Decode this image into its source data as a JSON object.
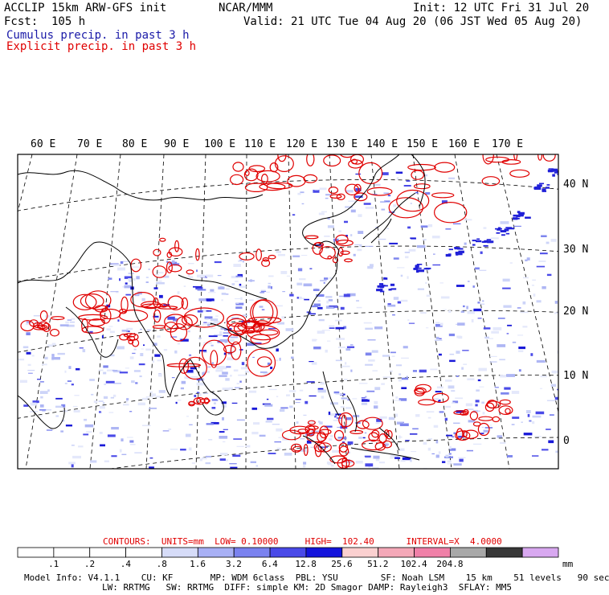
{
  "header": {
    "title_left": "ACCLIP 15km ARW-GFS init",
    "org": "NCAR/MMM",
    "init": "Init: 12 UTC Fri 31 Jul 20",
    "fcst": "Fcst:  105 h",
    "valid": "Valid: 21 UTC Tue 04 Aug 20 (06 JST Wed 05 Aug 20)",
    "cumulus_label": "Cumulus precip. in past 3 h",
    "explicit_label": "Explicit precip. in past 3 h"
  },
  "colors": {
    "cumulus": "#2a2ae0",
    "explicit": "#e00000",
    "coast": "#000000"
  },
  "map": {
    "lon_labels": [
      "60 E",
      "70 E",
      "80 E",
      "90 E",
      "100 E",
      "110 E",
      "120 E",
      "130 E",
      "140 E",
      "150 E",
      "160 E",
      "170 E"
    ],
    "lat_labels": [
      "40 N",
      "30 N",
      "20 N",
      "10 N",
      "0"
    ]
  },
  "contours": {
    "head": "CONTOURS:  UNITS=mm  LOW= 0.10000     HIGH=  102.40      INTERVAL=X  4.0000"
  },
  "legend": {
    "labels": [
      ".1",
      ".2",
      ".4",
      ".8",
      "1.6",
      "3.2",
      "6.4",
      "12.8",
      "25.6",
      "51.2",
      "102.4",
      "204.8"
    ],
    "unit": "mm",
    "colors": [
      "#ffffff",
      "#ffffff",
      "#ffffff",
      "#ffffff",
      "#d6dcf8",
      "#a8b0f5",
      "#7a82ef",
      "#4a4ae8",
      "#1414dc",
      "#fbd0d0",
      "#f4a8b8",
      "#f080a8",
      "#a8a8a8",
      "#383838",
      "#d8a8f0"
    ]
  },
  "footer": {
    "line1": "Model Info: V4.1.1    CU: KF       MP: WDM 6class  PBL: YSU        SF: Noah LSM    15 km    51 levels   90 sec",
    "line2": "LW: RRTMG   SW: RRTMG  DIFF: simple KM: 2D Smagor DAMP: Rayleigh3  SFLAY: MM5"
  }
}
